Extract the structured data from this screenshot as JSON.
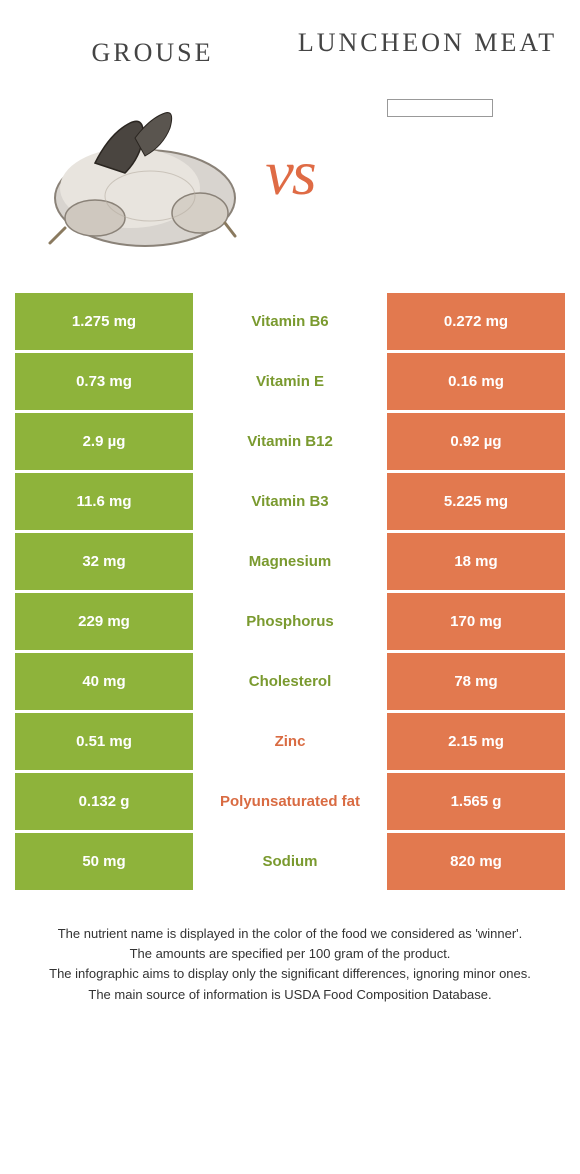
{
  "colors": {
    "green": "#8eb33b",
    "orange": "#e2794f",
    "green_text": "#7a9a2f",
    "orange_text": "#d96b42"
  },
  "header": {
    "food_a": "GROUSE",
    "food_b": "LUNCHEON MEAT",
    "vs": "vs"
  },
  "rows": [
    {
      "left": "1.275 mg",
      "label": "Vitamin B6",
      "right": "0.272 mg",
      "winner": "a"
    },
    {
      "left": "0.73 mg",
      "label": "Vitamin E",
      "right": "0.16 mg",
      "winner": "a"
    },
    {
      "left": "2.9 µg",
      "label": "Vitamin B12",
      "right": "0.92 µg",
      "winner": "a"
    },
    {
      "left": "11.6 mg",
      "label": "Vitamin B3",
      "right": "5.225 mg",
      "winner": "a"
    },
    {
      "left": "32 mg",
      "label": "Magnesium",
      "right": "18 mg",
      "winner": "a"
    },
    {
      "left": "229 mg",
      "label": "Phosphorus",
      "right": "170 mg",
      "winner": "a"
    },
    {
      "left": "40 mg",
      "label": "Cholesterol",
      "right": "78 mg",
      "winner": "a"
    },
    {
      "left": "0.51 mg",
      "label": "Zinc",
      "right": "2.15 mg",
      "winner": "b"
    },
    {
      "left": "0.132 g",
      "label": "Polyunsaturated fat",
      "right": "1.565 g",
      "winner": "b"
    },
    {
      "left": "50 mg",
      "label": "Sodium",
      "right": "820 mg",
      "winner": "a"
    }
  ],
  "footer": {
    "line1": "The nutrient name is displayed in the color of the food we considered as 'winner'.",
    "line2": "The amounts are specified per 100 gram of the product.",
    "line3": "The infographic aims to display only the significant differences, ignoring minor ones.",
    "line4": "The main source of information is USDA Food Composition Database."
  }
}
